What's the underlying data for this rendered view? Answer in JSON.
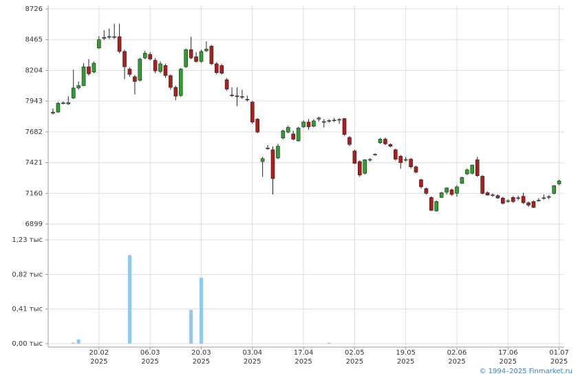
{
  "chart_data": [
    {
      "type": "candlestick",
      "up_color": "#2ea02e",
      "down_color": "#b01c1c",
      "grid": true,
      "ylim": [
        6899,
        8726
      ],
      "yticks": [
        6899,
        7160,
        7421,
        7682,
        7943,
        8204,
        8465,
        8726
      ],
      "open": [
        7840,
        7850,
        7925,
        7920,
        7970,
        8055,
        8075,
        8235,
        8190,
        8395,
        8475,
        8488,
        8485,
        8490,
        8365,
        8215,
        8150,
        8120,
        8310,
        8340,
        8290,
        8195,
        8245,
        8160,
        8060,
        7990,
        8235,
        8380,
        8320,
        8280,
        8370,
        8410,
        8260,
        8245,
        8125,
        7995,
        7988,
        7982,
        7958,
        7935,
        7790,
        7430,
        7540,
        7530,
        7460,
        7630,
        7680,
        7665,
        7605,
        7725,
        7765,
        7730,
        7790,
        7762,
        7772,
        7778,
        7783,
        7795,
        7635,
        7520,
        7430,
        7330,
        7442,
        7488,
        7590,
        7620,
        7575,
        7530,
        7475,
        7443,
        7450,
        7385,
        7275,
        7200,
        7125,
        7010,
        7125,
        7170,
        7190,
        7160,
        7245,
        7325,
        7330,
        7445,
        7305,
        7165,
        7143,
        7140,
        7120,
        7093,
        7125,
        7118,
        7135,
        7080,
        7090,
        7098,
        7118,
        7128,
        7160,
        7240
      ],
      "high": [
        7880,
        7935,
        7940,
        7985,
        8210,
        8110,
        8265,
        8300,
        8280,
        8495,
        8545,
        8560,
        8600,
        8600,
        8380,
        8230,
        8165,
        8310,
        8370,
        8360,
        8310,
        8280,
        8260,
        8170,
        8075,
        8225,
        8390,
        8490,
        8360,
        8380,
        8450,
        8420,
        8275,
        8260,
        8140,
        8060,
        8060,
        8040,
        7990,
        7945,
        7800,
        7470,
        7570,
        7560,
        7580,
        7700,
        7735,
        7690,
        7725,
        7780,
        7790,
        7790,
        7810,
        7790,
        7790,
        7800,
        7800,
        7800,
        7645,
        7530,
        7440,
        7450,
        7460,
        7500,
        7630,
        7635,
        7585,
        7540,
        7485,
        7470,
        7460,
        7395,
        7285,
        7210,
        7135,
        7100,
        7170,
        7210,
        7200,
        7230,
        7300,
        7370,
        7405,
        7470,
        7315,
        7175,
        7160,
        7150,
        7130,
        7110,
        7135,
        7140,
        7165,
        7090,
        7100,
        7120,
        7150,
        7145,
        7230,
        7275
      ],
      "low": [
        7830,
        7845,
        7915,
        7910,
        7960,
        8040,
        8070,
        8160,
        8180,
        8385,
        8460,
        8470,
        8470,
        8350,
        8130,
        8150,
        8000,
        8110,
        8300,
        8290,
        8180,
        8180,
        8140,
        8040,
        7950,
        7980,
        8225,
        8300,
        8270,
        8270,
        8360,
        8250,
        8170,
        8170,
        8030,
        7980,
        7900,
        7960,
        7940,
        7750,
        7670,
        7300,
        7530,
        7150,
        7450,
        7620,
        7670,
        7610,
        7600,
        7715,
        7700,
        7720,
        7770,
        7720,
        7760,
        7765,
        7750,
        7650,
        7560,
        7410,
        7300,
        7320,
        7430,
        7480,
        7580,
        7570,
        7550,
        7440,
        7370,
        7430,
        7370,
        7330,
        7200,
        7150,
        7010,
        7005,
        7120,
        7150,
        7140,
        7130,
        7240,
        7315,
        7320,
        7300,
        7150,
        7140,
        7130,
        7115,
        7065,
        7080,
        7080,
        7100,
        7070,
        7045,
        7035,
        7090,
        7105,
        7110,
        7150,
        7230
      ],
      "close": [
        7850,
        7925,
        7928,
        7930,
        8055,
        8075,
        8235,
        8175,
        8265,
        8465,
        8485,
        8492,
        8490,
        8365,
        8235,
        8170,
        8110,
        8300,
        8350,
        8300,
        8200,
        8260,
        8160,
        8060,
        7985,
        8215,
        8380,
        8310,
        8280,
        8365,
        8385,
        8260,
        8185,
        8180,
        8045,
        7990,
        7985,
        7980,
        7955,
        7765,
        7680,
        7455,
        7545,
        7285,
        7560,
        7690,
        7720,
        7620,
        7715,
        7765,
        7725,
        7775,
        7800,
        7770,
        7778,
        7782,
        7787,
        7660,
        7575,
        7415,
        7315,
        7445,
        7448,
        7492,
        7620,
        7580,
        7560,
        7450,
        7420,
        7447,
        7385,
        7340,
        7215,
        7160,
        7015,
        7090,
        7165,
        7205,
        7150,
        7215,
        7295,
        7360,
        7400,
        7310,
        7160,
        7145,
        7147,
        7120,
        7075,
        7097,
        7090,
        7122,
        7080,
        7060,
        7040,
        7102,
        7122,
        7132,
        7225,
        7265
      ]
    },
    {
      "type": "bar",
      "color": "#8ec9f2",
      "grid": true,
      "ylim": [
        0,
        1.23
      ],
      "yticks": [
        {
          "value": 0,
          "label": "0,00 тыс"
        },
        {
          "value": 0.41,
          "label": "0,41 тыс"
        },
        {
          "value": 0.82,
          "label": "0,82 тыс"
        },
        {
          "value": 1.23,
          "label": "1,23 тыс"
        }
      ],
      "categories": [
        null,
        null,
        null,
        null,
        null,
        null,
        null,
        null,
        null,
        "20.02\n2025",
        null,
        null,
        null,
        null,
        null,
        null,
        null,
        null,
        null,
        "06.03\n2025",
        null,
        null,
        null,
        null,
        null,
        null,
        null,
        null,
        null,
        "20.03\n2025",
        null,
        null,
        null,
        null,
        null,
        null,
        null,
        null,
        null,
        "03.04\n2025",
        null,
        null,
        null,
        null,
        null,
        null,
        null,
        null,
        null,
        "17.04\n2025",
        null,
        null,
        null,
        null,
        null,
        null,
        null,
        null,
        null,
        "02.05\n2025",
        null,
        null,
        null,
        null,
        null,
        null,
        null,
        null,
        null,
        "19.05\n2025",
        null,
        null,
        null,
        null,
        null,
        null,
        null,
        null,
        null,
        "02.06\n2025",
        null,
        null,
        null,
        null,
        null,
        null,
        null,
        null,
        null,
        "17.06\n2025",
        null,
        null,
        null,
        null,
        null,
        null,
        null,
        null,
        null,
        "01.07\n2025"
      ],
      "values": [
        0,
        0,
        0,
        0,
        0.01,
        0.05,
        0,
        0,
        0,
        0,
        0,
        0,
        0,
        0,
        0,
        1.05,
        0,
        0,
        0,
        0,
        0,
        0,
        0,
        0,
        0,
        0,
        0,
        0.4,
        0,
        0.78,
        0,
        0,
        0,
        0,
        0,
        0,
        0,
        0,
        0,
        0,
        0,
        0,
        0,
        0,
        0,
        0,
        0,
        0,
        0,
        0,
        0,
        0,
        0,
        0,
        0.01,
        0,
        0,
        0,
        0,
        0,
        0,
        0,
        0,
        0,
        0,
        0,
        0,
        0,
        0,
        0,
        0,
        0,
        0,
        0,
        0,
        0,
        0,
        0,
        0,
        0,
        0,
        0,
        0,
        0,
        0,
        0,
        0,
        0,
        0,
        0,
        0,
        0,
        0,
        0,
        0,
        0,
        0,
        0,
        0,
        0
      ]
    }
  ],
  "credit": "© 1994–2025 Finmarket.ru"
}
